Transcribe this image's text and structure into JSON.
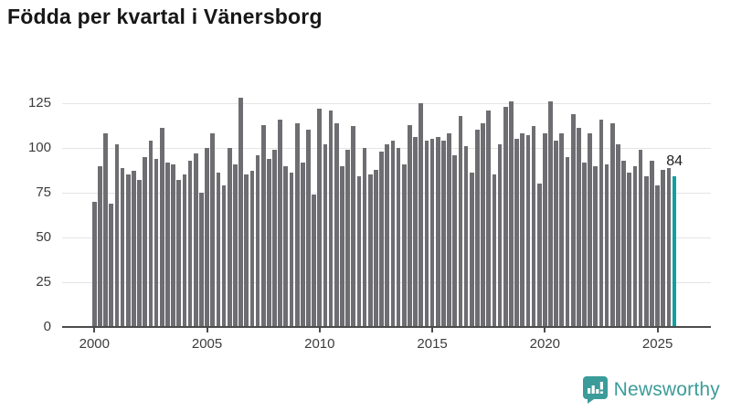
{
  "title": "Födda per kvartal i Vänersborg",
  "footer": {
    "brand": "Newsworthy"
  },
  "colors": {
    "bar": "#6e6e72",
    "highlight": "#10a0a0",
    "gridline": "#e4e4e4",
    "axis": "#4b4b4b",
    "text": "#3c3c3c",
    "brand": "#3b9c99"
  },
  "chart_data": {
    "type": "bar",
    "title": "Födda per kvartal i Vänersborg",
    "x_start": "2000-Q1",
    "x_end": "2025-Q4",
    "frequency": "quarterly",
    "values": [
      70,
      90,
      108,
      69,
      102,
      89,
      85,
      87,
      82,
      95,
      104,
      94,
      111,
      92,
      91,
      82,
      85,
      93,
      97,
      75,
      100,
      108,
      86,
      79,
      100,
      91,
      128,
      85,
      87,
      96,
      113,
      94,
      99,
      116,
      90,
      86,
      114,
      92,
      110,
      74,
      122,
      102,
      121,
      114,
      90,
      99,
      112,
      84,
      100,
      85,
      88,
      98,
      102,
      104,
      100,
      91,
      113,
      106,
      125,
      104,
      105,
      106,
      104,
      108,
      96,
      118,
      101,
      86,
      110,
      114,
      121,
      85,
      102,
      123,
      126,
      105,
      108,
      107,
      112,
      80,
      108,
      126,
      104,
      108,
      95,
      119,
      111,
      92,
      108,
      90,
      116,
      91,
      114,
      102,
      93,
      86,
      90,
      99,
      84,
      93,
      79,
      88,
      89,
      84
    ],
    "highlight_index": 103,
    "annotation": "84",
    "yticks": [
      0,
      25,
      50,
      75,
      100,
      125
    ],
    "xtick_years": [
      2000,
      2005,
      2010,
      2015,
      2020,
      2025
    ],
    "ylim": [
      0,
      134
    ],
    "grid": true,
    "legend": false
  }
}
